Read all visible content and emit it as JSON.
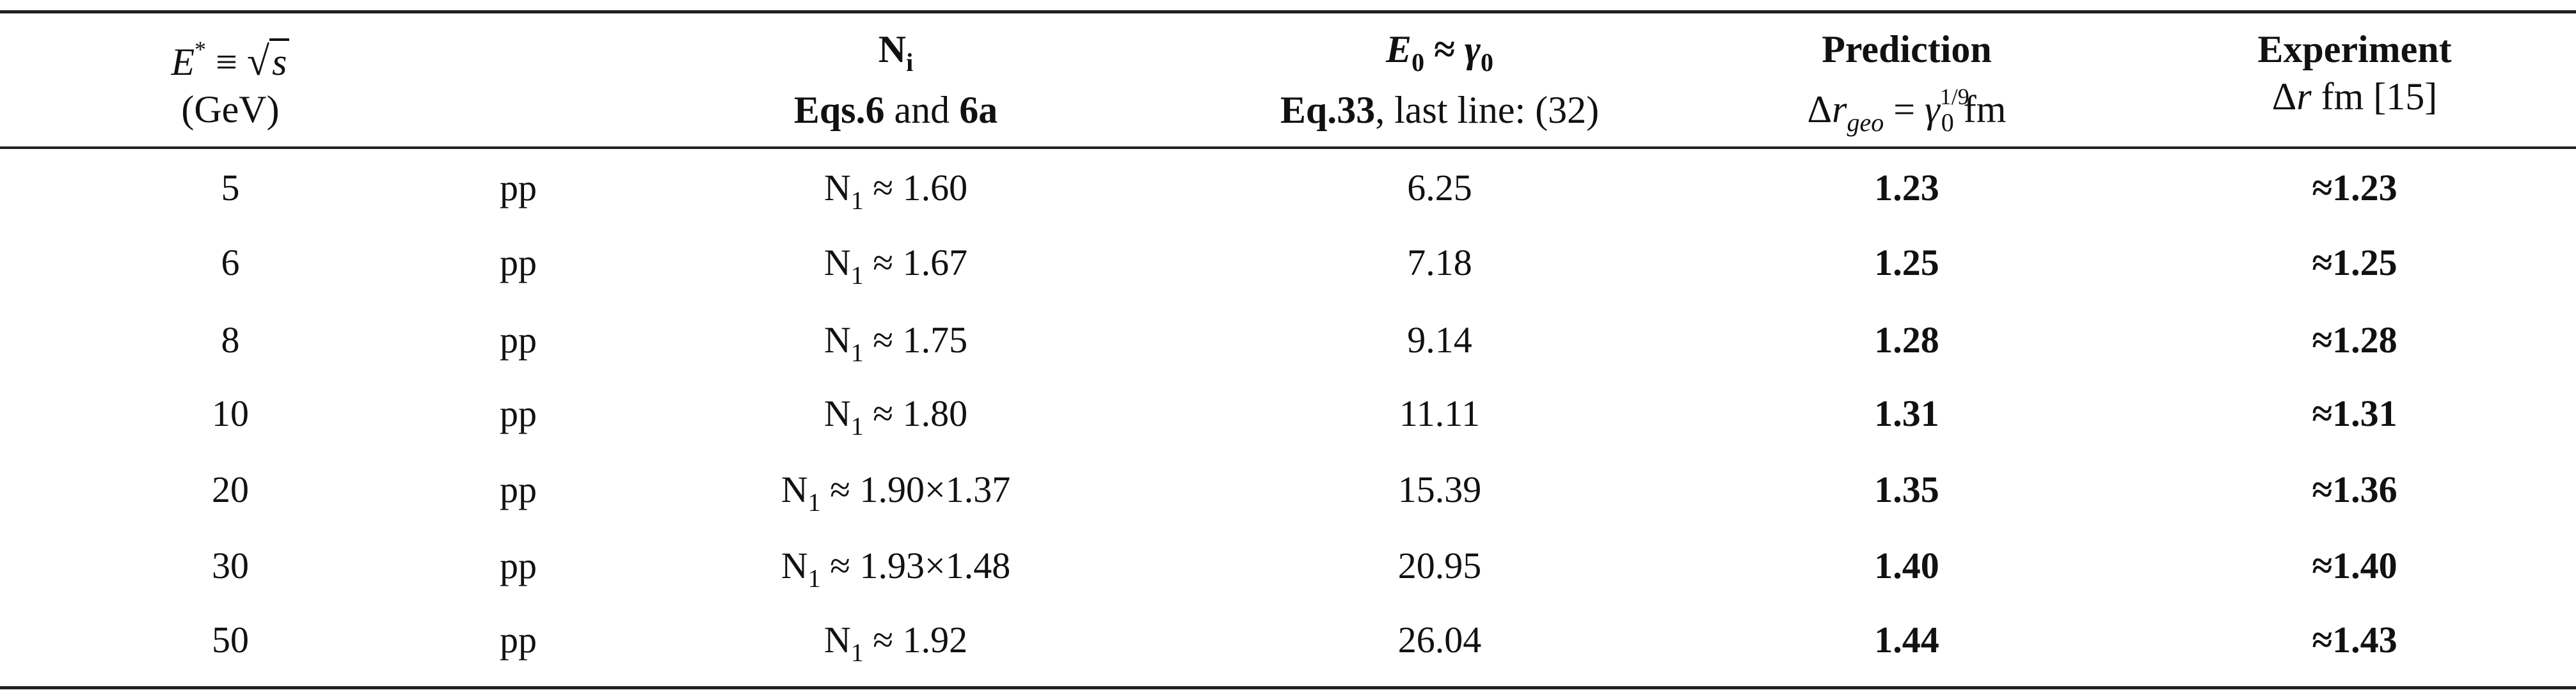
{
  "table": {
    "header": {
      "col0": {
        "line1_a": "E",
        "line1_sup": "*",
        "line1_b": " ≡ ",
        "line1_sqrt": "s",
        "line2": "(GeV)"
      },
      "col2": {
        "line1_a": "N",
        "line1_sub": "i",
        "line2_a": "Eqs.6",
        "line2_b": " and ",
        "line2_c": "6a"
      },
      "col3": {
        "line1_a": "E",
        "line1_sub": "0",
        "line1_b": " ≈ ",
        "line1_c": "γ",
        "line1_sub2": "0",
        "line2_a": "Eq.33",
        "line2_b": ", last line: (32)"
      },
      "col4": {
        "line1": "Prediction",
        "line2_a": "Δ",
        "line2_b": "r",
        "line2_sub": "geo",
        "line2_c": " =   ",
        "line2_d": "γ",
        "line2_sup": "1/9",
        "line2_sub2": "0",
        "line2_e": "   fm"
      },
      "col5": {
        "line1": "Experiment",
        "line2_a": "Δ",
        "line2_b": "r",
        "line2_c": " fm [15]"
      }
    },
    "rows": [
      {
        "energy": "5",
        "system": "pp",
        "n_prefix": "N",
        "n_sub": "1",
        "n_value": " ≈ 1.60",
        "e0": "6.25",
        "prediction": "1.23",
        "experiment": "≈1.23"
      },
      {
        "energy": "6",
        "system": "pp",
        "n_prefix": "N",
        "n_sub": "1",
        "n_value": " ≈ 1.67",
        "e0": "7.18",
        "prediction": "1.25",
        "experiment": "≈1.25"
      },
      {
        "energy": "8",
        "system": "pp",
        "n_prefix": "N",
        "n_sub": "1",
        "n_value": " ≈ 1.75",
        "e0": "9.14",
        "prediction": "1.28",
        "experiment": "≈1.28"
      },
      {
        "energy": "10",
        "system": "pp",
        "n_prefix": "N",
        "n_sub": "1",
        "n_value": " ≈ 1.80",
        "e0": "11.11",
        "prediction": "1.31",
        "experiment": "≈1.31"
      },
      {
        "energy": "20",
        "system": "pp",
        "n_prefix": "N",
        "n_sub": "1",
        "n_value": " ≈ 1.90×1.37",
        "e0": "15.39",
        "prediction": "1.35",
        "experiment": "≈1.36"
      },
      {
        "energy": "30",
        "system": "pp",
        "n_prefix": "N",
        "n_sub": "1",
        "n_value": " ≈ 1.93×1.48",
        "e0": "20.95",
        "prediction": "1.40",
        "experiment": "≈1.40"
      },
      {
        "energy": "50",
        "system": "pp",
        "n_prefix": "N",
        "n_sub": "1",
        "n_value": " ≈ 1.92",
        "e0": "26.04",
        "prediction": "1.44",
        "experiment": "≈1.43"
      }
    ]
  }
}
